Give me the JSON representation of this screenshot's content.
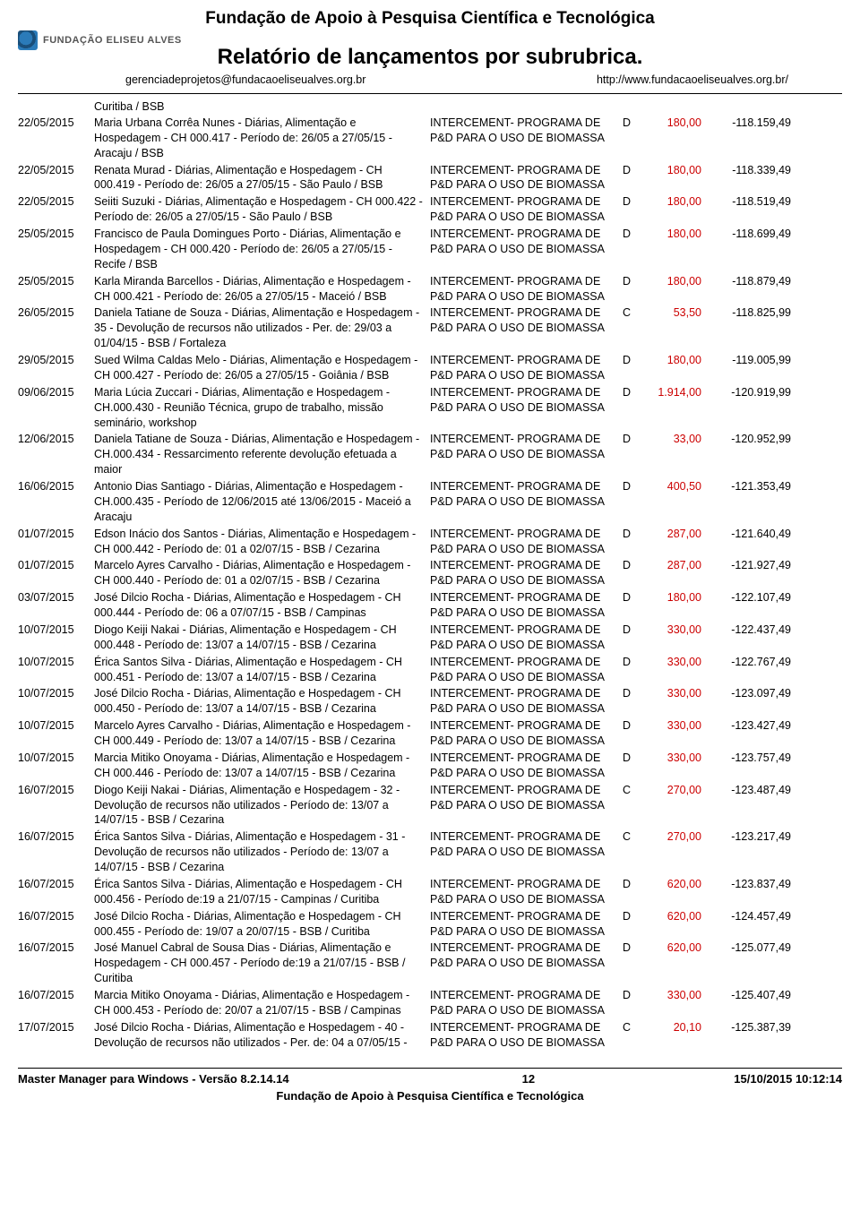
{
  "header": {
    "org_name": "Fundação de Apoio à Pesquisa Científica e Tecnológica",
    "logo_text": "FUNDAÇÃO ELISEU ALVES",
    "report_title": "Relatório de lançamentos por subrubrica.",
    "email": "gerenciadeprojetos@fundacaoeliseualves.org.br",
    "url": "http://www.fundacaoeliseualves.org.br/"
  },
  "leading_location": "Curitiba / BSB",
  "program_line1": "INTERCEMENT- PROGRAMA DE",
  "program_line2": "P&D PARA O USO DE BIOMASSA",
  "rows": [
    {
      "date": "22/05/2015",
      "desc": "Maria Urbana Corrêa Nunes  - Diárias, Alimentação e Hospedagem - CH 000.417 - Período de: 26/05 a 27/05/15 - Aracaju / BSB",
      "type": "D",
      "amount": "180,00",
      "balance": "-118.159,49"
    },
    {
      "date": "22/05/2015",
      "desc": "Renata Murad  - Diárias, Alimentação e Hospedagem - CH 000.419 - Período de: 26/05 a 27/05/15 - São Paulo / BSB",
      "type": "D",
      "amount": "180,00",
      "balance": "-118.339,49"
    },
    {
      "date": "22/05/2015",
      "desc": "Seiiti Suzuki - Diárias, Alimentação e Hospedagem - CH 000.422 - Período de: 26/05 a 27/05/15 - São Paulo / BSB",
      "type": "D",
      "amount": "180,00",
      "balance": "-118.519,49"
    },
    {
      "date": "25/05/2015",
      "desc": "Francisco de Paula Domingues Porto  - Diárias, Alimentação e Hospedagem - CH 000.420 - Período de: 26/05 a 27/05/15 - Recife / BSB",
      "type": "D",
      "amount": "180,00",
      "balance": "-118.699,49"
    },
    {
      "date": "25/05/2015",
      "desc": "Karla Miranda Barcellos  - Diárias, Alimentação e Hospedagem - CH 000.421 - Período de: 26/05 a 27/05/15 - Maceió / BSB",
      "type": "D",
      "amount": "180,00",
      "balance": "-118.879,49"
    },
    {
      "date": "26/05/2015",
      "desc": "Daniela Tatiane de Souza - Diárias, Alimentação e Hospedagem - 35 - Devolução de recursos não utilizados - Per. de: 29/03 a 01/04/15 - BSB / Fortaleza",
      "type": "C",
      "amount": "53,50",
      "balance": "-118.825,99"
    },
    {
      "date": "29/05/2015",
      "desc": "Sued Wilma Caldas Melo  - Diárias, Alimentação e Hospedagem - CH 000.427 - Período de: 26/05 a 27/05/15 - Goiânia / BSB",
      "type": "D",
      "amount": "180,00",
      "balance": "-119.005,99"
    },
    {
      "date": "09/06/2015",
      "desc": "Maria Lúcia Zuccari - Diárias, Alimentação e Hospedagem - CH.000.430 - Reunião Técnica, grupo de trabalho, missão seminário, workshop",
      "type": "D",
      "amount": "1.914,00",
      "balance": "-120.919,99"
    },
    {
      "date": "12/06/2015",
      "desc": "Daniela Tatiane de Souza - Diárias, Alimentação e Hospedagem - CH.000.434 - Ressarcimento referente devolução efetuada a maior",
      "type": "D",
      "amount": "33,00",
      "balance": "-120.952,99"
    },
    {
      "date": "16/06/2015",
      "desc": "Antonio Dias Santiago - Diárias, Alimentação e Hospedagem - CH.000.435 - Período de 12/06/2015 até 13/06/2015 - Maceió a Aracaju",
      "type": "D",
      "amount": "400,50",
      "balance": "-121.353,49"
    },
    {
      "date": "01/07/2015",
      "desc": "Edson Inácio dos Santos - Diárias, Alimentação e Hospedagem - CH 000.442 - Período de: 01 a 02/07/15 - BSB / Cezarina",
      "type": "D",
      "amount": "287,00",
      "balance": "-121.640,49"
    },
    {
      "date": "01/07/2015",
      "desc": "Marcelo Ayres Carvalho - Diárias, Alimentação e Hospedagem - CH 000.440 - Período de: 01 a 02/07/15 - BSB / Cezarina",
      "type": "D",
      "amount": "287,00",
      "balance": "-121.927,49"
    },
    {
      "date": "03/07/2015",
      "desc": "José Dilcio Rocha - Diárias, Alimentação e Hospedagem - CH 000.444 - Período de: 06 a 07/07/15 - BSB / Campinas",
      "type": "D",
      "amount": "180,00",
      "balance": "-122.107,49"
    },
    {
      "date": "10/07/2015",
      "desc": "Diogo Keiji Nakai  - Diárias, Alimentação e Hospedagem - CH 000.448 - Período de: 13/07 a 14/07/15 - BSB / Cezarina",
      "type": "D",
      "amount": "330,00",
      "balance": "-122.437,49"
    },
    {
      "date": "10/07/2015",
      "desc": "Érica Santos Silva - Diárias, Alimentação e Hospedagem - CH 000.451 - Período de: 13/07 a 14/07/15 -  BSB / Cezarina",
      "type": "D",
      "amount": "330,00",
      "balance": "-122.767,49"
    },
    {
      "date": "10/07/2015",
      "desc": "José Dilcio Rocha - Diárias, Alimentação e Hospedagem - CH 000.450 - Período de: 13/07 a 14/07/15 - BSB / Cezarina",
      "type": "D",
      "amount": "330,00",
      "balance": "-123.097,49"
    },
    {
      "date": "10/07/2015",
      "desc": "Marcelo Ayres Carvalho - Diárias, Alimentação e Hospedagem - CH 000.449 - Período de: 13/07 a 14/07/15 - BSB / Cezarina",
      "type": "D",
      "amount": "330,00",
      "balance": "-123.427,49"
    },
    {
      "date": "10/07/2015",
      "desc": "Marcia Mitiko Onoyama - Diárias, Alimentação e Hospedagem - CH 000.446 - Período de: 13/07 a 14/07/15 - BSB / Cezarina",
      "type": "D",
      "amount": "330,00",
      "balance": "-123.757,49"
    },
    {
      "date": "16/07/2015",
      "desc": "Diogo Keiji Nakai  - Diárias, Alimentação e Hospedagem - 32 - Devolução de recursos não utilizados - Período de: 13/07 a 14/07/15 - BSB / Cezarina",
      "type": "C",
      "amount": "270,00",
      "balance": "-123.487,49"
    },
    {
      "date": "16/07/2015",
      "desc": "Érica Santos Silva - Diárias, Alimentação e Hospedagem - 31 - Devolução de recursos não utilizados - Período de: 13/07 a 14/07/15 - BSB / Cezarina",
      "type": "C",
      "amount": "270,00",
      "balance": "-123.217,49"
    },
    {
      "date": "16/07/2015",
      "desc": "Érica Santos Silva - Diárias, Alimentação e Hospedagem - CH 000.456 - Período de:19 a 21/07/15 - Campinas / Curitiba",
      "type": "D",
      "amount": "620,00",
      "balance": "-123.837,49"
    },
    {
      "date": "16/07/2015",
      "desc": "José Dilcio Rocha - Diárias, Alimentação e Hospedagem - CH 000.455 - Período de: 19/07 a 20/07/15 - BSB / Curitiba",
      "type": "D",
      "amount": "620,00",
      "balance": "-124.457,49"
    },
    {
      "date": "16/07/2015",
      "desc": "José Manuel Cabral de Sousa Dias - Diárias, Alimentação e Hospedagem - CH 000.457 - Período de:19 a 21/07/15 - BSB / Curitiba",
      "type": "D",
      "amount": "620,00",
      "balance": "-125.077,49"
    },
    {
      "date": "16/07/2015",
      "desc": "Marcia Mitiko Onoyama - Diárias, Alimentação e Hospedagem - CH 000.453 - Período de: 20/07 a 21/07/15 - BSB / Campinas",
      "type": "D",
      "amount": "330,00",
      "balance": "-125.407,49"
    },
    {
      "date": "17/07/2015",
      "desc": "José Dilcio Rocha - Diárias, Alimentação e Hospedagem - 40 - Devolução de recursos não utilizados - Per. de: 04 a 07/05/15 -",
      "type": "C",
      "amount": "20,10",
      "balance": "-125.387,39"
    }
  ],
  "footer": {
    "software": "Master Manager para Windows - Versão 8.2.14.14",
    "page": "12",
    "timestamp": "15/10/2015 10:12:14",
    "org_line": "Fundação de Apoio à Pesquisa Científica e Tecnológica"
  },
  "colors": {
    "red": "#cc0000",
    "text": "#000000",
    "bg": "#ffffff"
  }
}
